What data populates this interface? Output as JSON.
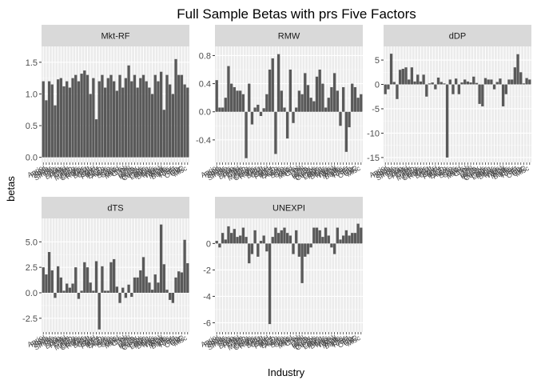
{
  "chart_data": {
    "type": "bar",
    "title": "Full Sample Betas with prs Five Factors",
    "xlabel": "Industry",
    "ylabel": "betas",
    "bar_color": "#595959",
    "panel_background": "#ebebeb",
    "strip_background": "#d9d9d9",
    "grid": true,
    "categories": [
      "Agric",
      "Food",
      "Soda",
      "Beer",
      "Smoke",
      "Toys",
      "Fun",
      "Books",
      "Hshld",
      "Clths",
      "Hlth",
      "MedEq",
      "Drugs",
      "Chems",
      "Rubbr",
      "Txtls",
      "BldMt",
      "Cnstr",
      "Steel",
      "FabPr",
      "Mach",
      "ElcEq",
      "Autos",
      "Aero",
      "Ships",
      "Guns",
      "Gold",
      "Mines",
      "Coal",
      "Oil",
      "Util",
      "Telcm",
      "PerSv",
      "BusSv",
      "Comps",
      "Chips",
      "LabEq",
      "Paper",
      "Boxes",
      "Trans",
      "Whlsl",
      "Rtail",
      "Meals",
      "Banks",
      "Insur",
      "RlEst",
      "Fin",
      "Other",
      "Util2",
      "Misc"
    ],
    "panels": [
      {
        "name": "Mkt-RF",
        "ylim": [
          -0.08,
          1.75
        ],
        "yticks": [
          0.0,
          0.5,
          1.0,
          1.5
        ],
        "ytick_labels": [
          "0.0",
          "0.5",
          "1.0",
          "1.5"
        ],
        "values": [
          1.2,
          0.9,
          1.2,
          1.15,
          0.82,
          1.23,
          1.25,
          1.12,
          1.2,
          1.1,
          1.25,
          1.3,
          1.2,
          1.32,
          1.37,
          1.3,
          1.0,
          1.25,
          0.6,
          1.2,
          1.3,
          1.1,
          1.25,
          1.3,
          1.2,
          1.05,
          1.3,
          1.1,
          1.25,
          1.45,
          1.2,
          1.3,
          1.1,
          1.25,
          1.3,
          1.2,
          1.1,
          1.0,
          1.3,
          1.2,
          1.35,
          0.75,
          1.3,
          1.15,
          1.0,
          1.55,
          1.3,
          1.3,
          1.15,
          1.1
        ]
      },
      {
        "name": "RMW",
        "ylim": [
          -0.72,
          0.93
        ],
        "yticks": [
          -0.4,
          0.0,
          0.4,
          0.8
        ],
        "ytick_labels": [
          "-0.4",
          "0.0",
          "0.4",
          "0.8"
        ],
        "values": [
          0.45,
          0.06,
          0.06,
          0.2,
          0.65,
          0.4,
          0.35,
          0.3,
          0.3,
          0.25,
          -0.66,
          0.4,
          -0.18,
          0.06,
          0.1,
          -0.06,
          0.05,
          0.25,
          0.6,
          0.76,
          -0.6,
          0.82,
          0.3,
          0.06,
          -0.38,
          0.6,
          -0.16,
          0.06,
          0.3,
          0.25,
          0.55,
          0.38,
          0.2,
          0.15,
          0.5,
          0.6,
          0.4,
          0.06,
          0.2,
          0.35,
          0.55,
          0.3,
          -0.2,
          0.35,
          -0.57,
          -0.22,
          0.4,
          0.35,
          0.2,
          0.25
        ]
      },
      {
        "name": "dDP",
        "ylim": [
          -16.0,
          7.8
        ],
        "yticks": [
          -15,
          -10,
          -5,
          0,
          5
        ],
        "ytick_labels": [
          "-15",
          "-10",
          "-5",
          "0",
          "5"
        ],
        "values": [
          -2.0,
          -1.0,
          6.3,
          0.5,
          -3.0,
          3.0,
          3.2,
          3.5,
          1.0,
          3.5,
          0.6,
          2.0,
          0.6,
          2.0,
          -2.5,
          0.2,
          0.4,
          -1.0,
          1.4,
          0.5,
          0.2,
          -15.0,
          1.0,
          -2.0,
          1.2,
          -2.0,
          0.4,
          1.0,
          0.6,
          0.4,
          1.6,
          0.3,
          -4.0,
          -4.5,
          1.3,
          1.0,
          1.0,
          -1.0,
          0.5,
          1.2,
          -4.5,
          -2.0,
          1.0,
          1.0,
          3.5,
          6.2,
          2.5,
          0.2,
          1.3,
          1.0
        ]
      },
      {
        "name": "dTS",
        "ylim": [
          -3.85,
          7.3
        ],
        "yticks": [
          -2.5,
          0.0,
          2.5,
          5.0
        ],
        "ytick_labels": [
          "-2.5",
          "0.0",
          "2.5",
          "5.0"
        ],
        "values": [
          2.5,
          1.8,
          4.0,
          2.2,
          -0.5,
          2.6,
          1.5,
          0.2,
          0.9,
          0.5,
          0.9,
          2.5,
          -0.6,
          0.2,
          3.0,
          2.5,
          1.0,
          0.2,
          3.1,
          -3.6,
          2.6,
          0.2,
          0.2,
          3.0,
          3.3,
          0.6,
          -1.0,
          0.5,
          -0.5,
          0.8,
          -0.4,
          1.5,
          1.5,
          2.2,
          3.5,
          1.6,
          1.0,
          0.3,
          1.8,
          1.0,
          6.7,
          2.8,
          0.3,
          -0.7,
          -1.0,
          1.5,
          2.1,
          2.0,
          5.2,
          2.9
        ]
      },
      {
        "name": "UNEXPI",
        "ylim": [
          -6.7,
          1.9
        ],
        "yticks": [
          -6,
          -4,
          -2,
          0
        ],
        "ytick_labels": [
          "-6",
          "-4",
          "-2",
          "0"
        ],
        "values": [
          0.2,
          -0.3,
          0.8,
          0.3,
          1.3,
          0.8,
          1.1,
          0.5,
          0.6,
          1.2,
          0.5,
          -1.5,
          -0.8,
          1.0,
          -1.0,
          0.2,
          0.6,
          -0.6,
          -6.1,
          0.5,
          1.2,
          0.8,
          1.0,
          1.2,
          0.8,
          0.6,
          -0.8,
          1.0,
          -1.0,
          -3.0,
          -1.0,
          -0.8,
          -0.3,
          1.2,
          1.2,
          1.0,
          0.5,
          1.2,
          0.6,
          -0.3,
          -0.8,
          1.2,
          0.3,
          0.6,
          1.0,
          0.6,
          0.8,
          0.8,
          1.5,
          1.2
        ]
      }
    ]
  }
}
